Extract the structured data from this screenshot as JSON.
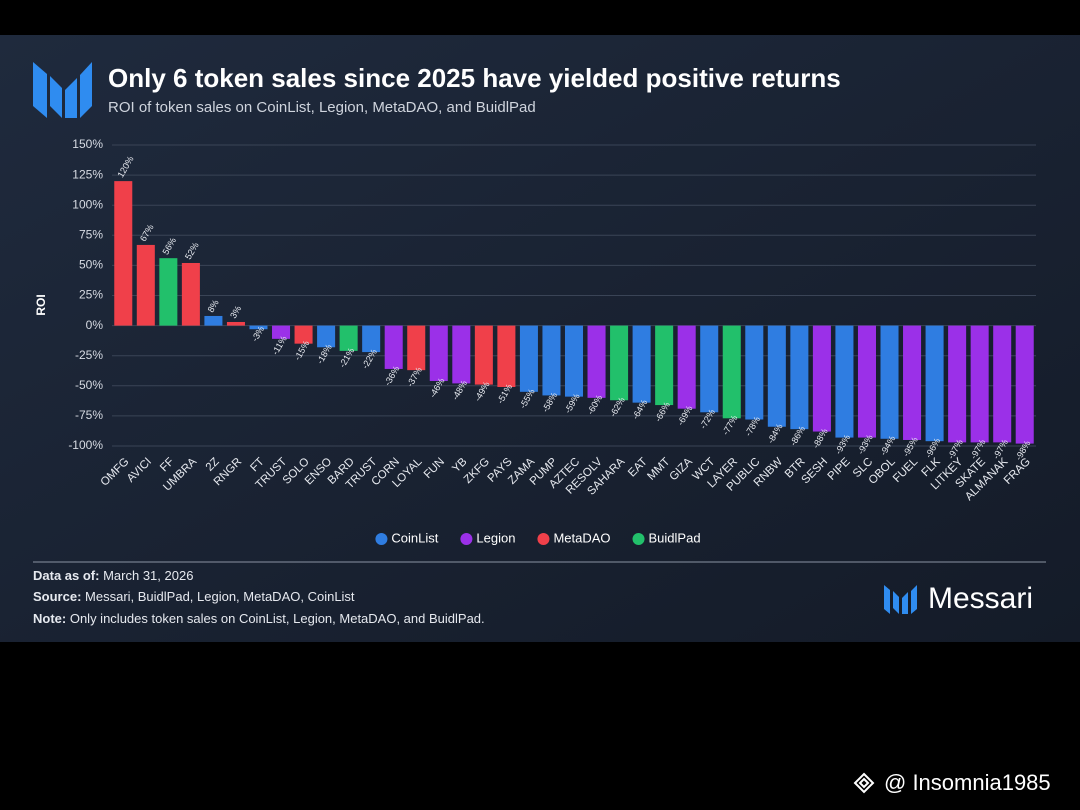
{
  "header": {
    "title": "Only 6 token sales since 2025 have yielded positive returns",
    "subtitle": "ROI of token sales on CoinList, Legion, MetaDAO, and BuidlPad"
  },
  "chart_data": {
    "type": "bar",
    "y_label": "ROI",
    "categories": [
      "OMFG",
      "AVICI",
      "FF",
      "UMBRA",
      "2Z",
      "RNGR",
      "FT",
      "TRUST",
      "SOLO",
      "ENSO",
      "BARD",
      "TRUST",
      "CORN",
      "LOYAL",
      "FUN",
      "YB",
      "ZKFG",
      "PAYS",
      "ZAMA",
      "PUMP",
      "AZTEC",
      "RESOLV",
      "SAHARA",
      "EAT",
      "MMT",
      "GIZA",
      "WCT",
      "LAYER",
      "PUBLIC",
      "RNBW",
      "BTR",
      "SESH",
      "PIPE",
      "SLC",
      "OBOL",
      "FUEL",
      "FLK",
      "LITKEY",
      "SKATE",
      "ALMANAK",
      "FRAG"
    ],
    "series": [
      {
        "name": "CoinList",
        "color": "#2f7de1",
        "values": [
          null,
          null,
          null,
          null,
          8,
          null,
          -3,
          null,
          null,
          -18,
          null,
          -22,
          null,
          null,
          null,
          null,
          null,
          null,
          -55,
          -58,
          -59,
          null,
          null,
          -64,
          null,
          null,
          -72,
          null,
          -78,
          -84,
          -86,
          null,
          -93,
          null,
          -94,
          null,
          -96,
          null,
          null,
          null,
          null
        ],
        "value_labels": [
          null,
          null,
          null,
          null,
          "8%",
          null,
          "-3%",
          null,
          null,
          "-18%",
          null,
          "-22%",
          null,
          null,
          null,
          null,
          null,
          null,
          "-55%",
          "-58%",
          "-59%",
          null,
          null,
          "-64%",
          null,
          null,
          "-72%",
          null,
          "-78%",
          "-84%",
          "-86%",
          null,
          "-93%",
          null,
          "-94%",
          null,
          "-96%",
          null,
          null,
          null,
          null
        ]
      },
      {
        "name": "Legion",
        "color": "#9b30e8",
        "values": [
          null,
          null,
          null,
          null,
          null,
          null,
          null,
          -11,
          null,
          null,
          null,
          null,
          -36,
          null,
          -46,
          -48,
          null,
          null,
          null,
          null,
          null,
          -60,
          null,
          null,
          null,
          -69,
          null,
          null,
          null,
          null,
          null,
          -88,
          null,
          -93,
          null,
          -95,
          null,
          -97,
          -97,
          -97,
          -98
        ],
        "value_labels": [
          null,
          null,
          null,
          null,
          null,
          null,
          null,
          "-11%",
          null,
          null,
          null,
          null,
          "-36%",
          null,
          "-46%",
          "-48%",
          null,
          null,
          null,
          null,
          null,
          "-60%",
          null,
          null,
          null,
          "-69%",
          null,
          null,
          null,
          null,
          null,
          "-88%",
          null,
          "-93%",
          null,
          "-95%",
          null,
          "-97%",
          "-97%",
          "-97%",
          "-98%"
        ]
      },
      {
        "name": "MetaDAO",
        "color": "#f0404a",
        "values": [
          120,
          67,
          null,
          52,
          null,
          3,
          null,
          null,
          -15,
          null,
          null,
          null,
          null,
          -37,
          null,
          null,
          -49,
          -51,
          null,
          null,
          null,
          null,
          null,
          null,
          null,
          null,
          null,
          null,
          null,
          null,
          null,
          null,
          null,
          null,
          null,
          null,
          null,
          null,
          null,
          null,
          null
        ],
        "value_labels": [
          "120%",
          "67%",
          null,
          "52%",
          null,
          "3%",
          null,
          null,
          "-15%",
          null,
          null,
          null,
          null,
          "-37%",
          null,
          null,
          "-49%",
          "-51%",
          null,
          null,
          null,
          null,
          null,
          null,
          null,
          null,
          null,
          null,
          null,
          null,
          null,
          null,
          null,
          null,
          null,
          null,
          null,
          null,
          null,
          null,
          null
        ]
      },
      {
        "name": "BuidlPad",
        "color": "#22c06b",
        "values": [
          null,
          null,
          56,
          null,
          null,
          null,
          null,
          null,
          null,
          null,
          -21,
          null,
          null,
          null,
          null,
          null,
          null,
          null,
          null,
          null,
          null,
          null,
          -62,
          null,
          -66,
          null,
          null,
          -77,
          null,
          null,
          null,
          null,
          null,
          null,
          null,
          null,
          null,
          null,
          null,
          null,
          null
        ],
        "value_labels": [
          null,
          null,
          "56%",
          null,
          null,
          null,
          null,
          null,
          null,
          null,
          "-21%",
          null,
          null,
          null,
          null,
          null,
          null,
          null,
          null,
          null,
          null,
          null,
          "-62%",
          null,
          "-66%",
          null,
          null,
          "-77%",
          null,
          null,
          null,
          null,
          null,
          null,
          null,
          null,
          null,
          null,
          null,
          null,
          null
        ]
      }
    ],
    "ylim": [
      -100,
      150
    ],
    "yticks": [
      {
        "value": -100,
        "label": "-100%"
      },
      {
        "value": -75,
        "label": "-75%"
      },
      {
        "value": -50,
        "label": "-50%"
      },
      {
        "value": -25,
        "label": "-25%"
      },
      {
        "value": 0,
        "label": "0%"
      },
      {
        "value": 25,
        "label": "25%"
      },
      {
        "value": 50,
        "label": "50%"
      },
      {
        "value": 75,
        "label": "75%"
      },
      {
        "value": 100,
        "label": "100%"
      },
      {
        "value": 125,
        "label": "125%"
      },
      {
        "value": 150,
        "label": "150%"
      }
    ],
    "grid": true
  },
  "footer": {
    "data_as_of": {
      "label": "Data as of:",
      "text": "March 31, 2026"
    },
    "source": {
      "label": "Source:",
      "text": "Messari, BuidlPad, Legion, MetaDAO, CoinList"
    },
    "note": {
      "label": "Note:",
      "text": "Only includes token sales on CoinList, Legion, MetaDAO, and BuidlPad."
    },
    "brand": "Messari"
  },
  "watermark": "@ Insomnia1985"
}
